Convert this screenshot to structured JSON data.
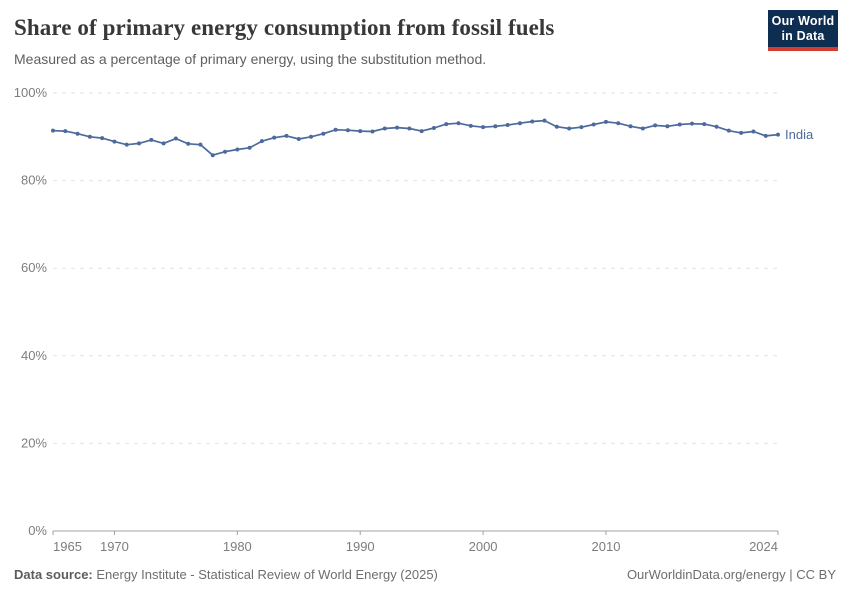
{
  "header": {
    "title": "Share of primary energy consumption from fossil fuels",
    "subtitle": "Measured as a percentage of primary energy, using the substitution method.",
    "logo": {
      "line1": "Our World",
      "line2": "in Data"
    }
  },
  "footer": {
    "source_label": "Data source:",
    "source_text": " Energy Institute - Statistical Review of World Energy (2025)",
    "credit": "OurWorldinData.org/energy | CC BY"
  },
  "colors": {
    "series_blue": "#4C6A9C",
    "logo_navy": "#0d2d51",
    "logo_red": "#d13d33",
    "grid_gray": "#e2e2e2",
    "axis_gray": "#a1a1a1",
    "tick_label_gray": "#7d7d7d",
    "title_gray": "#383838"
  },
  "chart_data": {
    "type": "line",
    "title": "Share of primary energy consumption from fossil fuels",
    "subtitle": "Measured as a percentage of primary energy, using the substitution method.",
    "xlabel": "",
    "ylabel": "",
    "xlim": [
      1965,
      2024
    ],
    "ylim": [
      0,
      100
    ],
    "x_ticks": [
      1965,
      1970,
      1980,
      1990,
      2000,
      2010,
      2024
    ],
    "x_tick_labels": [
      "1965",
      "1970",
      "1980",
      "1990",
      "2000",
      "2010",
      "2024"
    ],
    "y_ticks": [
      0,
      20,
      40,
      60,
      80,
      100
    ],
    "y_tick_labels": [
      "0%",
      "20%",
      "40%",
      "60%",
      "80%",
      "100%"
    ],
    "grid": "horizontal-dashed",
    "legend_position": "end-of-line",
    "series": [
      {
        "name": "India",
        "color": "#4C6A9C",
        "x": [
          1965,
          1966,
          1967,
          1968,
          1969,
          1970,
          1971,
          1972,
          1973,
          1974,
          1975,
          1976,
          1977,
          1978,
          1979,
          1980,
          1981,
          1982,
          1983,
          1984,
          1985,
          1986,
          1987,
          1988,
          1989,
          1990,
          1991,
          1992,
          1993,
          1994,
          1995,
          1996,
          1997,
          1998,
          1999,
          2000,
          2001,
          2002,
          2003,
          2004,
          2005,
          2006,
          2007,
          2008,
          2009,
          2010,
          2011,
          2012,
          2013,
          2014,
          2015,
          2016,
          2017,
          2018,
          2019,
          2020,
          2021,
          2022,
          2023,
          2024
        ],
        "values": [
          91.4,
          91.3,
          90.7,
          90.0,
          89.7,
          88.9,
          88.2,
          88.5,
          89.3,
          88.5,
          89.6,
          88.4,
          88.2,
          85.8,
          86.6,
          87.1,
          87.5,
          89.0,
          89.8,
          90.2,
          89.5,
          90.0,
          90.7,
          91.6,
          91.5,
          91.3,
          91.2,
          91.9,
          92.1,
          91.9,
          91.3,
          92.0,
          92.9,
          93.1,
          92.5,
          92.2,
          92.4,
          92.7,
          93.1,
          93.5,
          93.7,
          92.3,
          91.9,
          92.2,
          92.8,
          93.4,
          93.1,
          92.4,
          91.9,
          92.6,
          92.4,
          92.8,
          93.0,
          92.9,
          92.3,
          91.4,
          90.9,
          91.2,
          90.2,
          90.5
        ]
      }
    ]
  }
}
